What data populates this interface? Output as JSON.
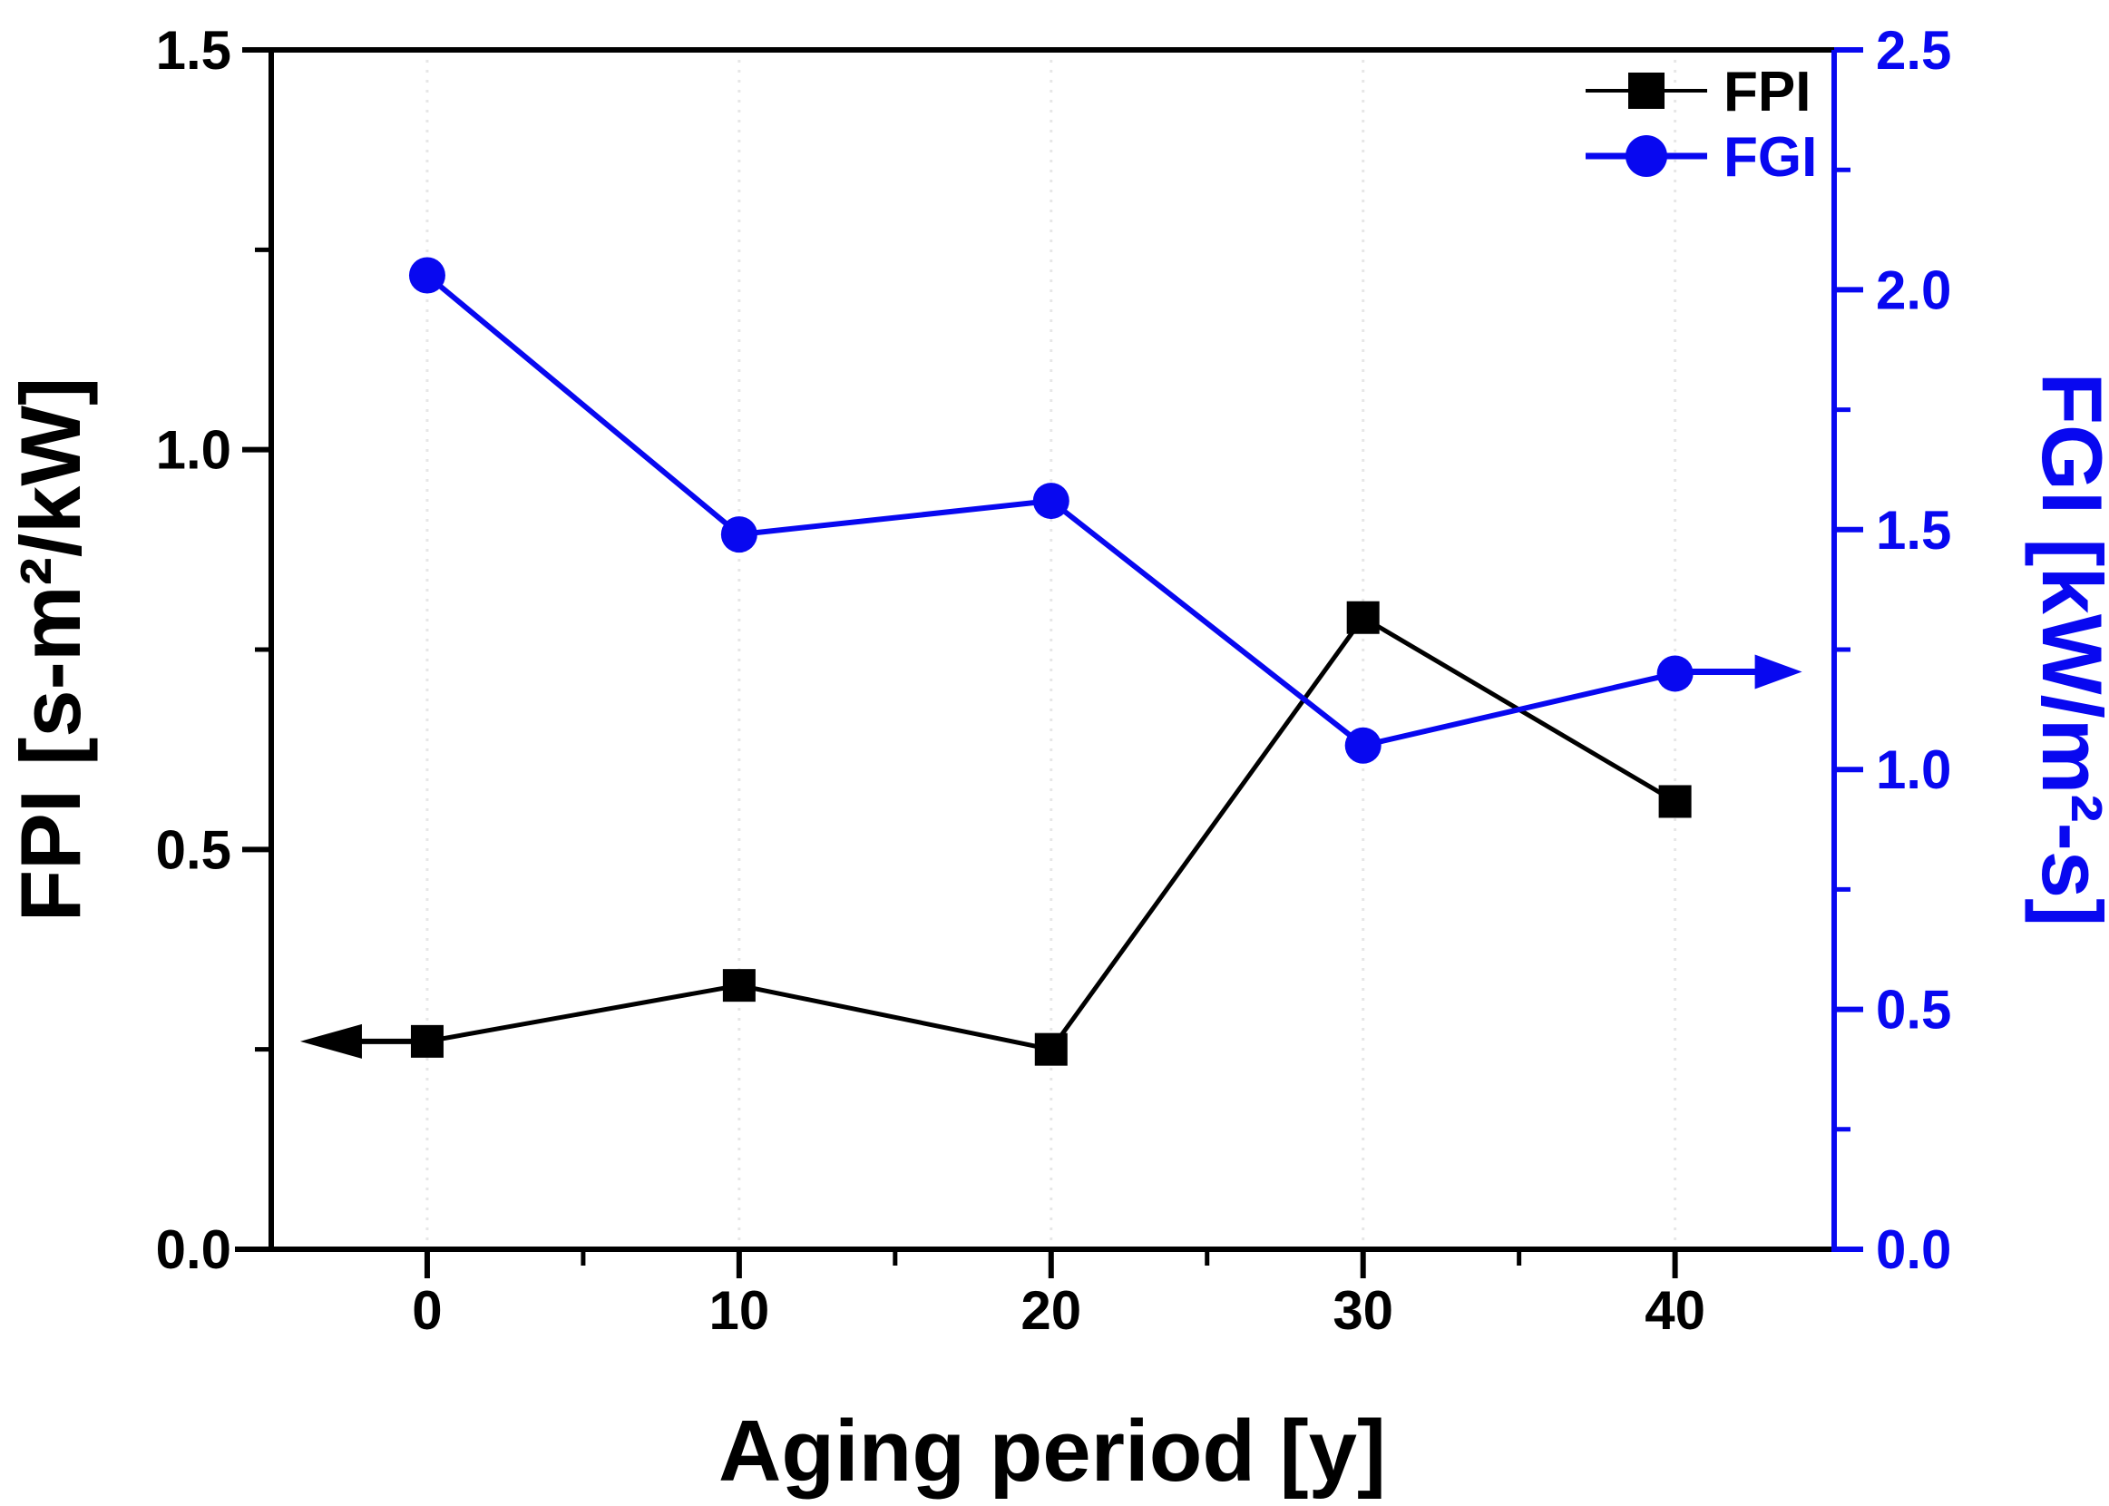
{
  "chart_data": {
    "type": "line",
    "title": "",
    "xlabel": "Aging period [y]",
    "x": [
      0,
      10,
      20,
      30,
      40
    ],
    "x_tick_labels": [
      "0",
      "10",
      "20",
      "30",
      "40"
    ],
    "x_minor_ticks": [
      5,
      15,
      25,
      35
    ],
    "xlim": [
      -5,
      45.1
    ],
    "grid": "faint dotted vertical gridlines at major x ticks",
    "colors": {
      "black": "#000000",
      "blue": "#0808f0",
      "grid": "#e7e7e7"
    },
    "left_axis": {
      "label": "FPI [s-m²/kW]",
      "ticks": [
        0.0,
        0.5,
        1.0,
        1.5
      ],
      "tick_labels": [
        "0.0",
        "0.5",
        "1.0",
        "1.5"
      ],
      "minor_ticks": [
        0.25,
        0.75,
        1.25
      ],
      "lim": [
        0,
        1.5
      ],
      "color": "#000000"
    },
    "right_axis": {
      "label": "FGI [kW/m²-s]",
      "ticks": [
        0.0,
        0.5,
        1.0,
        1.5,
        2.0,
        2.5
      ],
      "tick_labels": [
        "0.0",
        "0.5",
        "1.0",
        "1.5",
        "2.0",
        "2.5"
      ],
      "minor_ticks": [
        0.25,
        0.75,
        1.25,
        1.75,
        2.25
      ],
      "lim": [
        0,
        2.5
      ],
      "color": "#0808f0"
    },
    "series": [
      {
        "name": "FPI",
        "axis": "left",
        "marker": "square",
        "color": "#000000",
        "values": [
          0.26,
          0.33,
          0.25,
          0.79,
          0.56
        ],
        "axis_pointer_arrow": "left-from-first-point"
      },
      {
        "name": "FGI",
        "axis": "right",
        "marker": "circle",
        "color": "#0808f0",
        "values": [
          2.03,
          1.49,
          1.56,
          1.05,
          1.2
        ],
        "axis_pointer_arrow": "right-from-last-point"
      }
    ],
    "legend": {
      "position": "top-right-inside",
      "entries": [
        "FPI",
        "FGI"
      ]
    }
  }
}
